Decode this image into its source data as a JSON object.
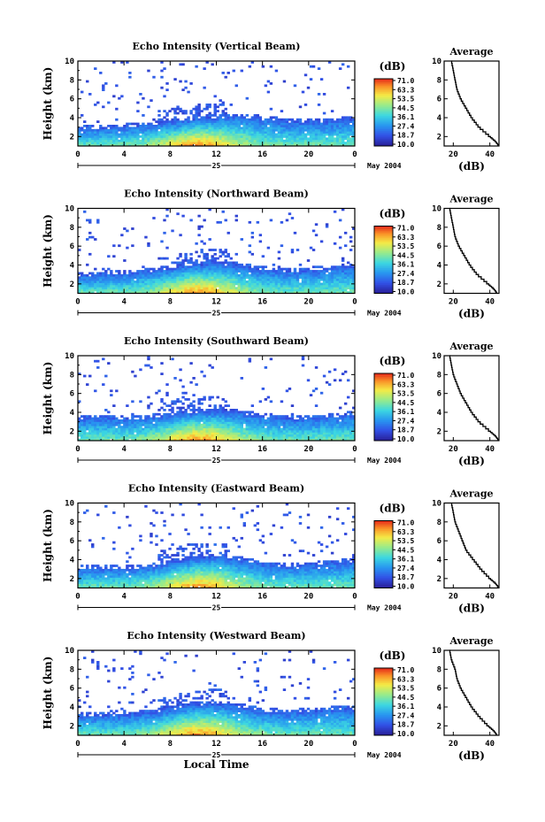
{
  "chart_data": [
    {
      "type": "heatmap",
      "title": "Echo Intensity (Vertical Beam)",
      "ylabel": "Height (km)",
      "xticks": [
        "0",
        "4",
        "8",
        "12",
        "16",
        "20",
        "0"
      ],
      "date_label": "25",
      "month_label": "May 2004",
      "yticks": [
        "2",
        "4",
        "6",
        "8",
        "10"
      ],
      "ylim": [
        1,
        10
      ],
      "xlim": [
        0,
        24
      ],
      "boundary_height_km": [
        2.8,
        2.9,
        3.0,
        3.2,
        3.5,
        3.8,
        4.0,
        4.1,
        3.9,
        3.6,
        3.5,
        3.6,
        3.8
      ],
      "colorbar": {
        "unit": "(dB)",
        "ticks": [
          "71.0",
          "63.3",
          "53.5",
          "44.5",
          "36.1",
          "27.4",
          "18.7",
          "10.0"
        ]
      },
      "profile": {
        "title": "Average",
        "xlabel": "(dB)",
        "xticks": [
          "20",
          "40"
        ],
        "yticks": [
          "2",
          "4",
          "6",
          "8",
          "10"
        ],
        "xlim": [
          15,
          45
        ],
        "height_km": [
          10,
          9,
          8,
          7,
          6,
          5,
          4,
          3,
          2,
          1.5,
          1
        ],
        "value_db": [
          19,
          20,
          21,
          22,
          24,
          27,
          30,
          34,
          40,
          43,
          45
        ]
      }
    },
    {
      "type": "heatmap",
      "title": "Echo Intensity (Northward Beam)",
      "ylabel": "Height (km)",
      "xticks": [
        "0",
        "4",
        "8",
        "12",
        "16",
        "20",
        "0"
      ],
      "date_label": "25",
      "month_label": "May 2004",
      "yticks": [
        "2",
        "4",
        "6",
        "8",
        "10"
      ],
      "ylim": [
        1,
        10
      ],
      "xlim": [
        0,
        24
      ],
      "boundary_height_km": [
        2.8,
        3.0,
        3.1,
        3.3,
        3.6,
        4.0,
        4.1,
        3.9,
        3.5,
        3.3,
        3.4,
        3.6,
        3.8
      ],
      "colorbar": {
        "unit": "(dB)",
        "ticks": [
          "71.0",
          "63.3",
          "53.5",
          "44.5",
          "36.1",
          "27.4",
          "18.7",
          "10.0"
        ]
      },
      "profile": {
        "title": "Average",
        "xlabel": "(dB)",
        "xticks": [
          "20",
          "40"
        ],
        "yticks": [
          "2",
          "4",
          "6",
          "8",
          "10"
        ],
        "xlim": [
          15,
          45
        ],
        "height_km": [
          10,
          9,
          8,
          7,
          6,
          5,
          4,
          3,
          2,
          1.5,
          1
        ],
        "value_db": [
          18,
          19,
          20,
          21,
          23,
          26,
          29,
          33,
          39,
          42,
          44
        ]
      }
    },
    {
      "type": "heatmap",
      "title": "Echo Intensity (Southward Beam)",
      "ylabel": "Height (km)",
      "xticks": [
        "0",
        "4",
        "8",
        "12",
        "16",
        "20",
        "0"
      ],
      "date_label": "25",
      "month_label": "May 2004",
      "yticks": [
        "2",
        "4",
        "6",
        "8",
        "10"
      ],
      "ylim": [
        1,
        10
      ],
      "xlim": [
        0,
        24
      ],
      "boundary_height_km": [
        3.3,
        3.4,
        3.3,
        3.4,
        3.7,
        4.0,
        4.1,
        3.9,
        3.6,
        3.3,
        3.3,
        3.5,
        3.8
      ],
      "colorbar": {
        "unit": "(dB)",
        "ticks": [
          "71.0",
          "63.3",
          "53.5",
          "44.5",
          "36.1",
          "27.4",
          "18.7",
          "10.0"
        ]
      },
      "profile": {
        "title": "Average",
        "xlabel": "(dB)",
        "xticks": [
          "20",
          "40"
        ],
        "yticks": [
          "2",
          "4",
          "6",
          "8",
          "10"
        ],
        "xlim": [
          15,
          45
        ],
        "height_km": [
          10,
          9,
          8,
          7,
          6,
          5,
          4,
          3,
          2,
          1.5,
          1
        ],
        "value_db": [
          18,
          19,
          20,
          22,
          24,
          27,
          30,
          34,
          40,
          43,
          45
        ]
      }
    },
    {
      "type": "heatmap",
      "title": "Echo Intensity (Eastward Beam)",
      "ylabel": "Height (km)",
      "xticks": [
        "0",
        "4",
        "8",
        "12",
        "16",
        "20",
        "0"
      ],
      "date_label": "25",
      "month_label": "May 2004",
      "yticks": [
        "2",
        "4",
        "6",
        "8",
        "10"
      ],
      "ylim": [
        1,
        10
      ],
      "xlim": [
        0,
        24
      ],
      "boundary_height_km": [
        3.0,
        3.1,
        3.0,
        3.2,
        3.6,
        4.1,
        4.3,
        4.0,
        3.5,
        3.3,
        3.4,
        3.6,
        3.8
      ],
      "colorbar": {
        "unit": "(dB)",
        "ticks": [
          "71.0",
          "63.3",
          "53.5",
          "44.5",
          "36.1",
          "27.4",
          "18.7",
          "10.0"
        ]
      },
      "profile": {
        "title": "Average",
        "xlabel": "(dB)",
        "xticks": [
          "20",
          "40"
        ],
        "yticks": [
          "2",
          "4",
          "6",
          "8",
          "10"
        ],
        "xlim": [
          15,
          45
        ],
        "height_km": [
          10,
          9,
          8,
          7,
          6,
          5,
          4,
          3,
          2,
          1.5,
          1
        ],
        "value_db": [
          19,
          20,
          21,
          23,
          25,
          27,
          31,
          35,
          40,
          43,
          45
        ]
      }
    },
    {
      "type": "heatmap",
      "title": "Echo Intensity (Westward Beam)",
      "ylabel": "Height (km)",
      "xlabel": "Local Time",
      "xticks": [
        "0",
        "4",
        "8",
        "12",
        "16",
        "20",
        "0"
      ],
      "date_label": "25",
      "month_label": "May 2004",
      "yticks": [
        "2",
        "4",
        "6",
        "8",
        "10"
      ],
      "ylim": [
        1,
        10
      ],
      "xlim": [
        0,
        24
      ],
      "boundary_height_km": [
        3.0,
        3.1,
        3.1,
        3.3,
        3.7,
        4.2,
        4.3,
        4.0,
        3.6,
        3.4,
        3.5,
        3.7,
        3.8
      ],
      "colorbar": {
        "unit": "(dB)",
        "ticks": [
          "71.0",
          "63.3",
          "53.5",
          "44.5",
          "36.1",
          "27.4",
          "18.7",
          "10.0"
        ]
      },
      "profile": {
        "title": "Average",
        "xlabel": "(dB)",
        "xticks": [
          "20",
          "40"
        ],
        "yticks": [
          "2",
          "4",
          "6",
          "8",
          "10"
        ],
        "xlim": [
          15,
          45
        ],
        "height_km": [
          10,
          9,
          8,
          7,
          6,
          5,
          4,
          3,
          2,
          1.5,
          1
        ],
        "value_db": [
          18,
          19,
          21,
          22,
          24,
          27,
          30,
          34,
          39,
          42,
          44
        ]
      }
    }
  ]
}
